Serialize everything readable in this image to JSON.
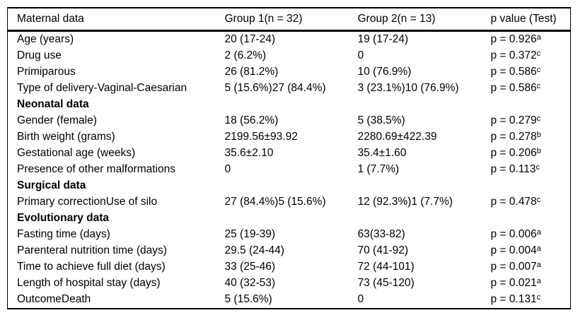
{
  "table": {
    "columns": [
      "Maternal data",
      "Group 1(n = 32)",
      "Group 2(n = 13)",
      "p value (Test)"
    ],
    "rows": [
      {
        "label": "Age (years)",
        "group1": "20 (17-24)",
        "group2": "19 (17-24)",
        "p": "p = 0.926",
        "sup": "a"
      },
      {
        "label": "Drug use",
        "group1": "2 (6.2%)",
        "group2": "0",
        "p": "p = 0.372",
        "sup": "c"
      },
      {
        "label": "Primiparous",
        "group1": "26 (81.2%)",
        "group2": "10 (76.9%)",
        "p": "p = 0.586",
        "sup": "c"
      },
      {
        "label": "Type of delivery-Vaginal-Caesarian",
        "group1": "5 (15.6%)27 (84.4%)",
        "group2": "3 (23.1%)10 (76.9%)",
        "p": "p = 0.586",
        "sup": "c"
      },
      {
        "section": true,
        "label": "Neonatal data"
      },
      {
        "label": "Gender (female)",
        "group1": "18 (56.2%)",
        "group2": "5 (38.5%)",
        "p": "p = 0.279",
        "sup": "c"
      },
      {
        "label": "Birth weight (grams)",
        "group1": "2199.56±93.92",
        "group2": "2280.69±422.39",
        "p": "p = 0.278",
        "sup": "b"
      },
      {
        "label": "Gestational age (weeks)",
        "group1": "35.6±2.10",
        "group2": "35.4±1.60",
        "p": "p = 0.206",
        "sup": "b"
      },
      {
        "label": "Presence of other malformations",
        "group1": "0",
        "group2": "1 (7.7%)",
        "p": "p = 0.113",
        "sup": "c"
      },
      {
        "section": true,
        "label": "Surgical data"
      },
      {
        "label": "Primary correctionUse of silo",
        "group1": "27 (84.4%)5 (15.6%)",
        "group2": "12 (92.3%)1 (7.7%)",
        "p": "p = 0.478",
        "sup": "c"
      },
      {
        "section": true,
        "label": "Evolutionary data"
      },
      {
        "label": "Fasting time (days)",
        "group1": "25 (19-39)",
        "group2": "63(33-82)",
        "p": "p = 0.006",
        "sup": "a"
      },
      {
        "label": "Parenteral nutrition time (days)",
        "group1": "29.5 (24-44)",
        "group2": "70 (41-92)",
        "p": "p = 0.004",
        "sup": "a"
      },
      {
        "label": "Time to achieve full diet (days)",
        "group1": "33 (25-46)",
        "group2": "72 (44-101)",
        "p": "p = 0.007",
        "sup": "a"
      },
      {
        "label": "Length of hospital stay (days)",
        "group1": "40 (32-53)",
        "group2": "73 (45-120)",
        "p": "p = 0.021",
        "sup": "a"
      },
      {
        "label": "OutcomeDeath",
        "group1": "5 (15.6%)",
        "group2": "0",
        "p": "p = 0.131",
        "sup": "c"
      }
    ],
    "colors": {
      "border": "#000000",
      "text": "#000000",
      "background": "#ffffff"
    }
  }
}
